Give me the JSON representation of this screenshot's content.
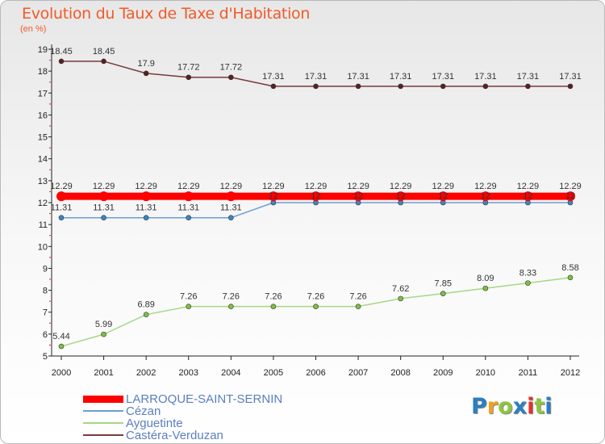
{
  "title": "Evolution du Taux de Taxe d'Habitation",
  "unit": "(en %)",
  "logo": {
    "text": "Proxiti",
    "colors": [
      "#2b7fc1",
      "#f2a01e",
      "#8dc63f",
      "#2b7fc1",
      "#e3332f",
      "#8dc63f",
      "#2b7fc1"
    ]
  },
  "chart_data": {
    "type": "line",
    "title": "Evolution du Taux de Taxe d'Habitation",
    "ylabel": "(en %)",
    "xlabel": "",
    "x": [
      "2000",
      "2001",
      "2002",
      "2003",
      "2004",
      "2005",
      "2006",
      "2007",
      "2008",
      "2009",
      "2010",
      "2011",
      "2012"
    ],
    "ylim": [
      5,
      19
    ],
    "yticks": [
      "5",
      "6",
      "7",
      "8",
      "9",
      "10",
      "11",
      "12",
      "13",
      "14",
      "15",
      "16",
      "17",
      "18",
      "19"
    ],
    "legend_position": "bottom-left",
    "series": [
      {
        "name": "LARROQUE-SAINT-SERNIN",
        "color": "#ff0000",
        "marker": "#ff0000",
        "values": [
          12.29,
          12.29,
          12.29,
          12.29,
          12.29,
          12.29,
          12.29,
          12.29,
          12.29,
          12.29,
          12.29,
          12.29,
          12.29
        ],
        "labels": [
          "12.29",
          "12.29",
          "12.29",
          "12.29",
          "12.29",
          "12.29",
          "12.29",
          "12.29",
          "12.29",
          "12.29",
          "12.29",
          "12.29",
          "12.29"
        ]
      },
      {
        "name": "Cézan",
        "color": "#6a9fd4",
        "marker": "#3a86c8",
        "values": [
          11.31,
          11.31,
          11.31,
          11.31,
          11.31,
          12,
          12,
          12,
          12,
          12,
          12,
          12,
          12
        ],
        "labels": [
          "11.31",
          "11.31",
          "11.31",
          "11.31",
          "11.31",
          "12",
          "12",
          "12",
          "12",
          "12",
          "12",
          "12",
          "12"
        ]
      },
      {
        "name": "Ayguetinte",
        "color": "#a6d785",
        "marker": "#7cc242",
        "values": [
          5.44,
          5.99,
          6.89,
          7.26,
          7.26,
          7.26,
          7.26,
          7.26,
          7.62,
          7.85,
          8.09,
          8.33,
          8.58
        ],
        "labels": [
          "5.44",
          "5.99",
          "6.89",
          "7.26",
          "7.26",
          "7.26",
          "7.26",
          "7.26",
          "7.62",
          "7.85",
          "8.09",
          "8.33",
          "8.58"
        ]
      },
      {
        "name": "Castéra-Verduzan",
        "color": "#7a3a3a",
        "marker": "#5c1f1f",
        "values": [
          18.45,
          18.45,
          17.9,
          17.72,
          17.72,
          17.31,
          17.31,
          17.31,
          17.31,
          17.31,
          17.31,
          17.31,
          17.31
        ],
        "labels": [
          "18.45",
          "18.45",
          "17.9",
          "17.72",
          "17.72",
          "17.31",
          "17.31",
          "17.31",
          "17.31",
          "17.31",
          "17.31",
          "17.31",
          "17.31"
        ]
      }
    ]
  }
}
